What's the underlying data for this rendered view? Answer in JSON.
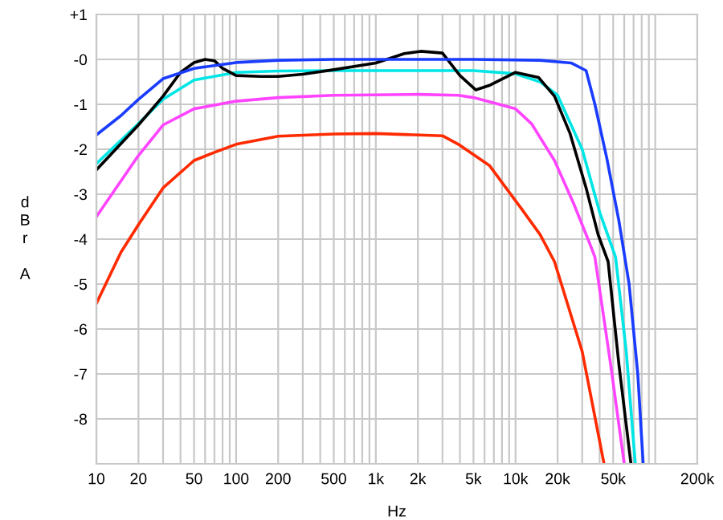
{
  "chart_data": {
    "type": "line",
    "xlabel": "Hz",
    "ylabel": "dBr A",
    "log": "x",
    "grid": true,
    "xlim": [
      10,
      200000
    ],
    "ylim": [
      -9,
      1
    ],
    "xticks": [
      10,
      20,
      {
        "value": 30,
        "label": null
      },
      {
        "value": 40,
        "label": null
      },
      50,
      {
        "value": 60,
        "label": null
      },
      {
        "value": 70,
        "label": null
      },
      {
        "value": 80,
        "label": null
      },
      {
        "value": 90,
        "label": null
      },
      100,
      200,
      {
        "value": 300,
        "label": null
      },
      {
        "value": 400,
        "label": null
      },
      500,
      {
        "value": 600,
        "label": null
      },
      {
        "value": 700,
        "label": null
      },
      {
        "value": 800,
        "label": null
      },
      {
        "value": 900,
        "label": null
      },
      {
        "value": 1000,
        "label": "1k"
      },
      {
        "value": 2000,
        "label": "2k"
      },
      {
        "value": 3000,
        "label": null
      },
      {
        "value": 4000,
        "label": null
      },
      {
        "value": 5000,
        "label": "5k"
      },
      {
        "value": 6000,
        "label": null
      },
      {
        "value": 7000,
        "label": null
      },
      {
        "value": 8000,
        "label": null
      },
      {
        "value": 9000,
        "label": null
      },
      {
        "value": 10000,
        "label": "10k"
      },
      {
        "value": 20000,
        "label": "20k"
      },
      {
        "value": 30000,
        "label": null
      },
      {
        "value": 40000,
        "label": null
      },
      {
        "value": 50000,
        "label": "50k"
      },
      {
        "value": 60000,
        "label": null
      },
      {
        "value": 70000,
        "label": null
      },
      {
        "value": 80000,
        "label": null
      },
      {
        "value": 90000,
        "label": null
      },
      {
        "value": 100000,
        "label": null
      },
      {
        "value": 200000,
        "label": "200k"
      }
    ],
    "yticks": [
      {
        "value": 1,
        "label": "+1"
      },
      {
        "value": 0,
        "label": "-0"
      },
      -1,
      -2,
      -3,
      -4,
      -5,
      -6,
      -7,
      -8,
      {
        "value": -9,
        "label": null
      }
    ],
    "series": [
      {
        "color": "#ff2a00",
        "x": [
          10,
          15,
          20,
          30,
          50,
          70,
          100,
          200,
          500,
          1000,
          3000,
          3900,
          6500,
          11000,
          15000,
          19000,
          30000,
          43000
        ],
        "values": [
          -5.43,
          -4.29,
          -3.68,
          -2.86,
          -2.25,
          -2.07,
          -1.89,
          -1.71,
          -1.66,
          -1.65,
          -1.7,
          -1.89,
          -2.36,
          -3.32,
          -3.9,
          -4.5,
          -6.5,
          -9
        ]
      },
      {
        "color": "#ff44ff",
        "x": [
          10,
          20,
          30,
          50,
          100,
          200,
          500,
          2000,
          3900,
          5000,
          10000,
          13000,
          19000,
          26000,
          34000,
          37000,
          48000,
          60000
        ],
        "values": [
          -3.5,
          -2.14,
          -1.46,
          -1.1,
          -0.93,
          -0.85,
          -0.8,
          -0.78,
          -0.8,
          -0.85,
          -1.1,
          -1.43,
          -2.25,
          -3.2,
          -4.1,
          -4.4,
          -6.8,
          -9
        ]
      },
      {
        "color": "#00e5e5",
        "x": [
          10,
          20,
          30,
          50,
          100,
          200,
          500,
          5000,
          10000,
          15000,
          20000,
          30000,
          40000,
          52000,
          62000,
          72000
        ],
        "values": [
          -2.32,
          -1.43,
          -0.89,
          -0.46,
          -0.29,
          -0.26,
          -0.25,
          -0.25,
          -0.32,
          -0.5,
          -0.8,
          -2.0,
          -3.4,
          -4.4,
          -6.5,
          -9
        ]
      },
      {
        "color": "#000000",
        "x": [
          10,
          20,
          30,
          40,
          50,
          60,
          70,
          80,
          100,
          150,
          200,
          300,
          500,
          1000,
          1600,
          2100,
          3000,
          4000,
          5200,
          6600,
          10000,
          14600,
          19000,
          24500,
          32000,
          39000,
          46000,
          55000,
          67000
        ],
        "values": [
          -2.46,
          -1.46,
          -0.82,
          -0.29,
          -0.07,
          0.0,
          -0.03,
          -0.2,
          -0.36,
          -0.38,
          -0.38,
          -0.33,
          -0.23,
          -0.08,
          0.13,
          0.18,
          0.14,
          -0.36,
          -0.68,
          -0.57,
          -0.29,
          -0.4,
          -0.82,
          -1.64,
          -2.86,
          -3.9,
          -4.5,
          -6.8,
          -9
        ]
      },
      {
        "color": "#1a3cff",
        "x": [
          10,
          15,
          20,
          30,
          50,
          100,
          200,
          500,
          5000,
          15000,
          25000,
          32000,
          37000,
          45000,
          55000,
          65000,
          75000,
          82000
        ],
        "values": [
          -1.68,
          -1.25,
          -0.89,
          -0.43,
          -0.2,
          -0.07,
          -0.02,
          0,
          0,
          -0.02,
          -0.08,
          -0.25,
          -1.0,
          -2.2,
          -3.6,
          -5.0,
          -7.0,
          -9
        ]
      }
    ]
  }
}
